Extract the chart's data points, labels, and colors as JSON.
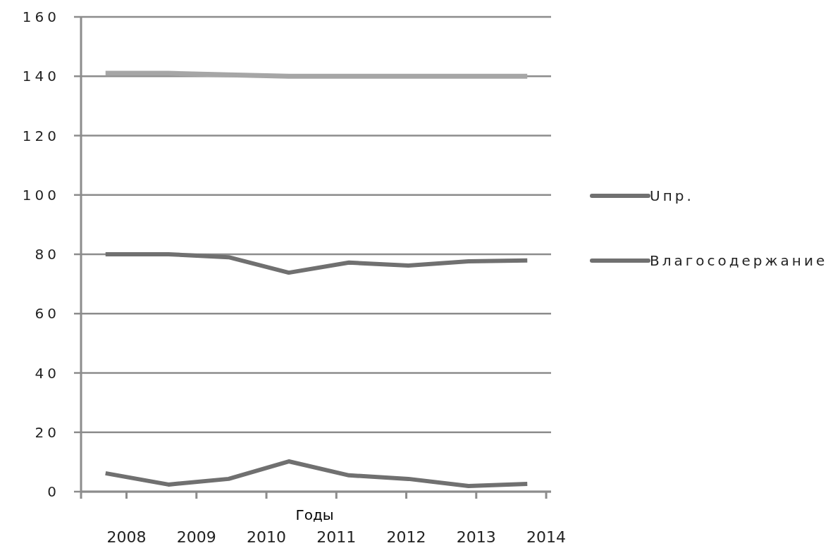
{
  "chart_data": {
    "type": "line",
    "xlabel": "Годы",
    "x": [
      2007.7,
      2008.6,
      2009.46,
      2010.32,
      2011.18,
      2012.03,
      2012.89,
      2013.73
    ],
    "series": [
      {
        "color": "#a6a6a6",
        "values": [
          141,
          141,
          140.5,
          140,
          140,
          140,
          140,
          140
        ]
      },
      {
        "name": "Uпр.",
        "color": "#707070",
        "values": [
          80,
          80,
          79,
          73.8,
          77.2,
          76.2,
          77.6,
          77.9
        ]
      },
      {
        "name": "Влагосодержание",
        "color": "#707070",
        "values": [
          6.2,
          2.4,
          4.3,
          10.2,
          5.5,
          4.3,
          1.9,
          2.6
        ]
      }
    ],
    "xlim": [
      2007.35,
      2014.07
    ],
    "xticks": [
      2008,
      2009,
      2010,
      2011,
      2012,
      2013,
      2014
    ],
    "ylim": [
      0,
      160
    ],
    "yticks": [
      0,
      20,
      40,
      60,
      80,
      100,
      120,
      140,
      160
    ],
    "grid": "y",
    "legend": "right",
    "marker": "none",
    "line_style": "solid"
  }
}
